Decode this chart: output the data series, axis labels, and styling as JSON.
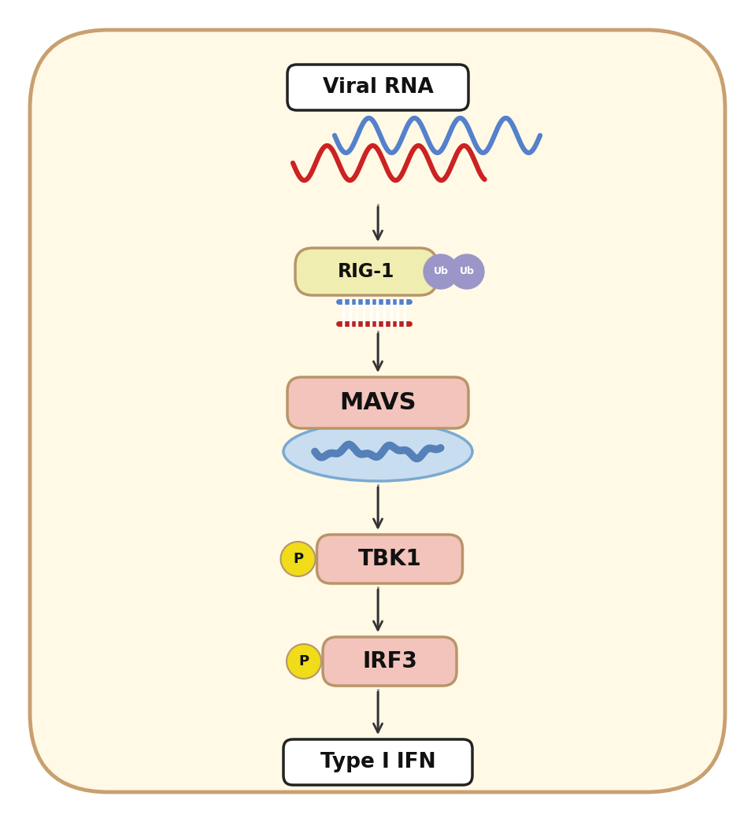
{
  "bg_outer": "#FFFFFF",
  "bg_inner": "#FFF9E6",
  "border_color": "#C8A070",
  "box_fill_yellow": "#F0EDB0",
  "box_fill_pink": "#F2C4BB",
  "box_stroke_brown": "#B8956A",
  "black_stroke": "#222222",
  "ub_color": "#9B96C8",
  "yellow_circle": "#F0DC18",
  "blue_wave_color": "#5580CC",
  "red_wave_color": "#CC2222",
  "dsrna_blue": "#5580CC",
  "dsrna_red": "#BB2222",
  "mito_fill": "#C8DDEF",
  "mito_border": "#7AAAD0",
  "mito_wave": "#5580B8",
  "arrow_line": "#999999",
  "arrow_head": "#333333",
  "text_dark": "#111111",
  "viral_rna_label": "Viral RNA",
  "rig1_label": "RIG-1",
  "ub_label": "Ub",
  "mavs_label": "MAVS",
  "tbk1_label": "TBK1",
  "irf3_label": "IRF3",
  "typeifn_label": "Type I IFN",
  "p_label": "P"
}
